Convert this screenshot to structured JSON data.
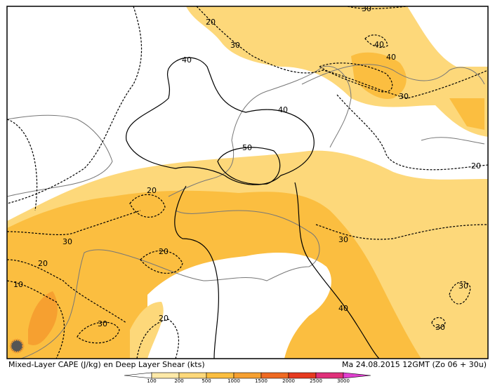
{
  "map": {
    "contour_labels": [
      "20",
      "30",
      "30",
      "40",
      "40",
      "30",
      "40",
      "40",
      "50",
      "20",
      "20",
      "30",
      "20",
      "30",
      "20",
      "10",
      "30",
      "40",
      "30",
      "20",
      "30"
    ],
    "caption": "Mixed-Layer CAPE (J/kg) en Deep Layer Shear (kts)",
    "valid_time": "Ma 24.08.2015 12GMT (Zo 06 + 30u)",
    "legend": {
      "labels": [
        "100",
        "200",
        "500",
        "1000",
        "1500",
        "2000",
        "2500",
        "3000"
      ],
      "colors": [
        "#ffffff",
        "#fde9a8",
        "#fdd87a",
        "#fbbe40",
        "#f6a030",
        "#ef6a22",
        "#e63a20",
        "#e0307a",
        "#e040d0"
      ]
    }
  }
}
